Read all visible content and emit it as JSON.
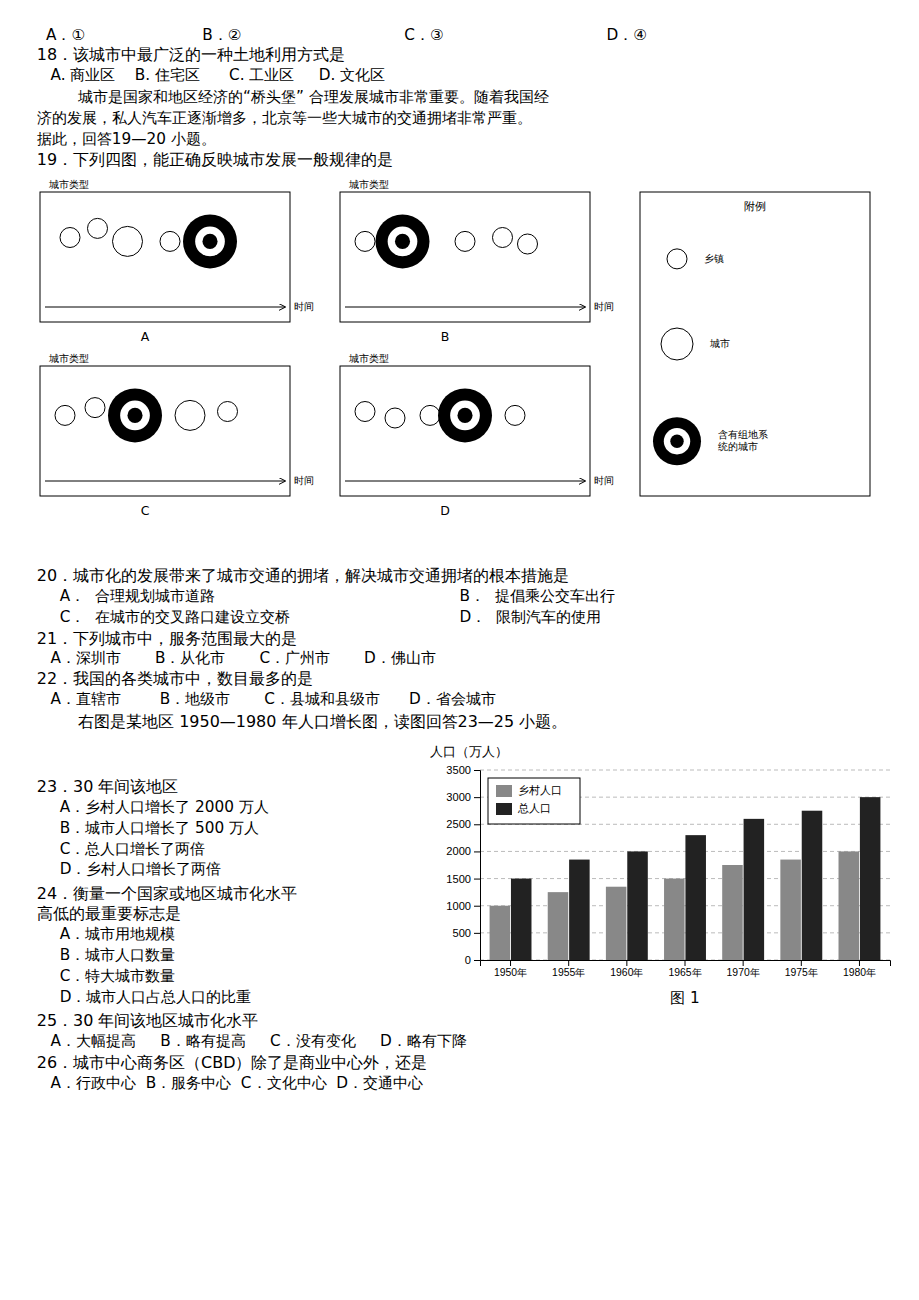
{
  "chart_data": {
    "type": "bar",
    "title": "图 1",
    "ylabel": "人口（万人）",
    "categories": [
      "1950年",
      "1955年",
      "1960年",
      "1965年",
      "1970年",
      "1975年",
      "1980年"
    ],
    "series": [
      {
        "name": "乡村人口",
        "color": "#888888",
        "values": [
          1000,
          1250,
          1350,
          1500,
          1750,
          1850,
          2000
        ]
      },
      {
        "name": "总人口",
        "color": "#222222",
        "values": [
          1500,
          1850,
          2000,
          2300,
          2600,
          2750,
          3000
        ]
      }
    ],
    "ylim": [
      0,
      3500
    ],
    "yticks": [
      0,
      500,
      1000,
      1500,
      2000,
      2500,
      3000,
      3500
    ],
    "grid": true,
    "legend": "upper left",
    "annotations": [
      "A．①",
      "B．②",
      "C．③",
      "D．④",
      "18．该城市中最广泛的一种土地利用方式是",
      "A. 商业区    B. 住宅区      C. 工业区     D. 文化区",
      "城市是国家和地区经济的“桥头堡” 合理发展城市非常重要。随着我国经",
      "济的发展，私人汽车正逐渐增多，北京等一些大城市的交通拥堵非常严重。",
      "据此，回答19—20 小题。",
      "19．下列四图，能正确反映城市发展一般规律的是",
      "城市类型",
      "时间",
      "A",
      "B",
      "C",
      "D",
      "附例",
      "乡镇",
      "城市",
      "含有组地系\n统的城市",
      "20．城市化的发展带来了城市交通的拥堵，解决城市交通拥堵的根本措施是",
      "A．  合理规划城市道路",
      "B．  提倡乘公交车出行",
      "C．  在城市的交叉路口建设立交桥",
      "D．  限制汽车的使用",
      "21．下列城市中，服务范围最大的是",
      "A．深圳市       B．从化市       C．广州市       D．佛山市",
      "22．我国的各类城市中，数目最多的是",
      "A．直辖市        B．地级市       C．县城和县级市      D．省会城市",
      "右图是某地区 1950—1980 年人口增长图，读图回答23—25 小题。",
      "23．30 年间该地区",
      "A．乡村人口增长了 2000 万人",
      "B．城市人口增长了 500 万人",
      "C．总人口增长了两倍",
      "D．乡村人口增长了两倍",
      "24．衡量一个国家或地区城市化水平",
      "高低的最重要标志是",
      "A．城市用地规模",
      "B．城市人口数量",
      "C．特大城市数量",
      "D．城市人口占总人口的比重",
      "25．30 年间该地区城市化水平",
      "A．大幅提高     B．略有提高     C．没有变化     D．略有下降",
      "26．城市中心商务区（CBD）除了是商业中心外，还是",
      "A．行政中心  B．服务中心  C．文化中心  D．交通中心"
    ]
  }
}
